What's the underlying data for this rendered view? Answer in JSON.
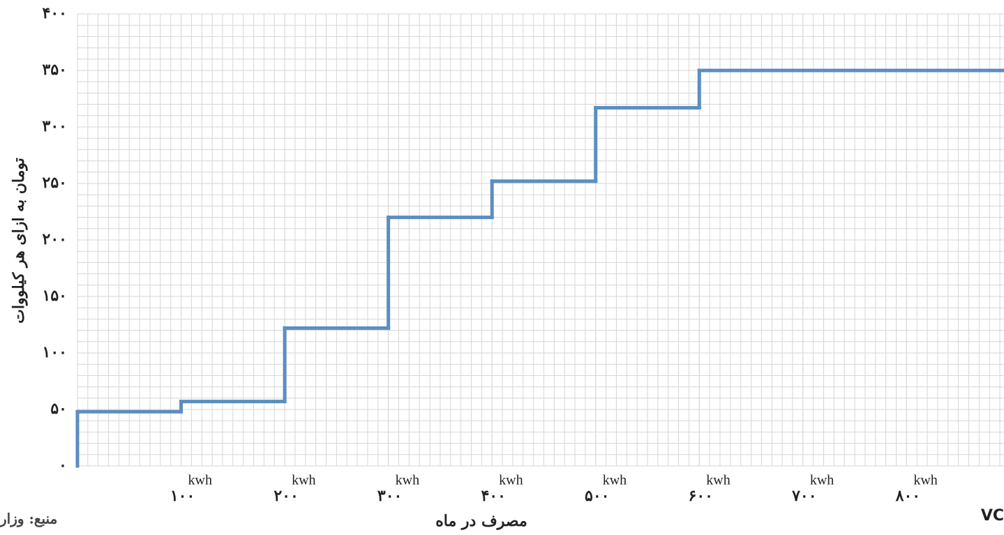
{
  "chart_data": {
    "type": "step",
    "y_label": "تومان به ازای هر کیلووات",
    "x_label": "مصرف در ماه",
    "source": "منبع: وزار",
    "corner_text": "VC",
    "x_unit": "kwh",
    "x": [
      0,
      100,
      200,
      300,
      400,
      500,
      600
    ],
    "values": [
      48,
      57,
      122,
      220,
      252,
      317,
      350
    ],
    "color": "#5b8ec1",
    "xlim": [
      0,
      894
    ],
    "ylim": [
      0,
      400
    ],
    "xticks": [
      {
        "value": 100,
        "label": "۱۰۰"
      },
      {
        "value": 200,
        "label": "۲۰۰"
      },
      {
        "value": 300,
        "label": "۳۰۰"
      },
      {
        "value": 400,
        "label": "۴۰۰"
      },
      {
        "value": 500,
        "label": "۵۰۰"
      },
      {
        "value": 600,
        "label": "۶۰۰"
      },
      {
        "value": 700,
        "label": "۷۰۰"
      },
      {
        "value": 800,
        "label": "۸۰۰"
      }
    ],
    "yticks": [
      {
        "value": 0,
        "label": "۰"
      },
      {
        "value": 50,
        "label": "۵۰"
      },
      {
        "value": 100,
        "label": "۱۰۰"
      },
      {
        "value": 150,
        "label": "۱۵۰"
      },
      {
        "value": 200,
        "label": "۲۰۰"
      },
      {
        "value": 250,
        "label": "۲۵۰"
      },
      {
        "value": 300,
        "label": "۳۰۰"
      },
      {
        "value": 350,
        "label": "۳۵۰"
      },
      {
        "value": 400,
        "label": "۴۰۰"
      }
    ],
    "grid": true,
    "minor_grid": true
  }
}
